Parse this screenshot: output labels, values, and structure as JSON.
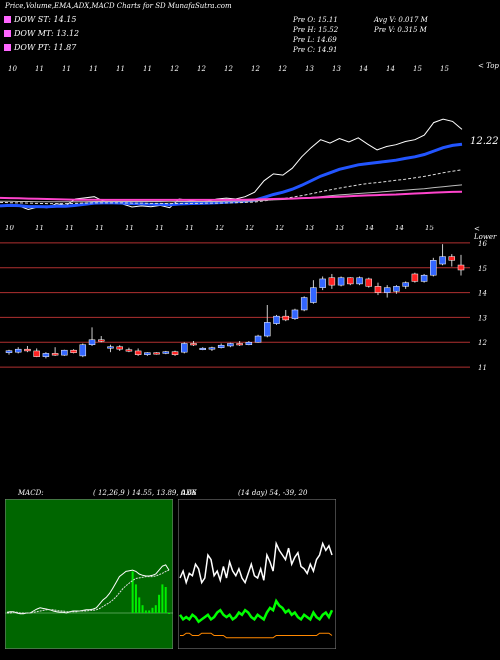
{
  "header": {
    "title": "Price,Volume,EMA,ADX,MACD Charts for SD MunafaSutra.com",
    "dow_st": "DOW ST: 14.15",
    "dow_mt": "DOW MT: 13.12",
    "dow_pt": "DOW PT: 11.87",
    "pre_o": "Pre   O: 15.11",
    "pre_h": "Pre   H: 15.52",
    "pre_l": "Pre   L: 14.69",
    "pre_c": "Pre   C: 14.91",
    "avg_v": "Avg V: 0.017 M",
    "pre_v": "Pre   V: 0.315 M"
  },
  "colors": {
    "dow_st": "#ff66ff",
    "dow_mt": "#ff66ff",
    "dow_pt": "#ff66ff",
    "ema_fast": "#2255ff",
    "ema_slow": "#ff44cc",
    "up": "#3366ff",
    "down": "#ff2222",
    "macd_bg": "#006600",
    "adx_bg": "#000080",
    "adx_green": "#00ff00",
    "adx_orange": "#ff8800",
    "hline": "#b03030"
  },
  "top_panel": {
    "corner_label": "< Top",
    "last_value_label": "12.22",
    "date_labels": [
      "10",
      "11",
      "11",
      "11",
      "11",
      "11",
      "12",
      "12",
      "12",
      "12",
      "12",
      "13",
      "13",
      "14",
      "14",
      "15",
      "15"
    ]
  },
  "price_panel": {
    "corner_label": "< Lower",
    "date_labels": [
      "10",
      "11",
      "11",
      "11",
      "11",
      "11",
      "11",
      "12",
      "12",
      "12",
      "13",
      "13",
      "14",
      "14",
      "15"
    ],
    "y_ticks": [
      "16",
      "15",
      "14",
      "13",
      "12",
      "11"
    ]
  },
  "macd_panel": {
    "label": "MACD:",
    "values": "( 12,26,9 ) 14.55, 13.89, 0.66"
  },
  "adx_panel": {
    "label": "ADX",
    "values": "(14 day) 54, -39, 20"
  },
  "chart_data": [
    {
      "type": "candlestick",
      "title": "Price",
      "y_ticks": [
        16,
        15,
        14,
        13,
        12,
        11
      ],
      "ylim": [
        10.6,
        16.4
      ],
      "candles": [
        {
          "o": 11.58,
          "h": 11.7,
          "l": 11.5,
          "c": 11.66
        },
        {
          "o": 11.6,
          "h": 11.8,
          "l": 11.55,
          "c": 11.72
        },
        {
          "o": 11.72,
          "h": 11.85,
          "l": 11.6,
          "c": 11.65
        },
        {
          "o": 11.65,
          "h": 11.75,
          "l": 11.4,
          "c": 11.42
        },
        {
          "o": 11.42,
          "h": 11.6,
          "l": 11.35,
          "c": 11.55
        },
        {
          "o": 11.55,
          "h": 11.8,
          "l": 11.45,
          "c": 11.48
        },
        {
          "o": 11.48,
          "h": 11.7,
          "l": 11.45,
          "c": 11.68
        },
        {
          "o": 11.68,
          "h": 11.72,
          "l": 11.55,
          "c": 11.58
        },
        {
          "o": 11.45,
          "h": 11.95,
          "l": 11.4,
          "c": 11.9
        },
        {
          "o": 11.9,
          "h": 12.6,
          "l": 11.85,
          "c": 12.1
        },
        {
          "o": 12.1,
          "h": 12.25,
          "l": 12.0,
          "c": 12.05
        },
        {
          "o": 11.8,
          "h": 11.9,
          "l": 11.6,
          "c": 11.82
        },
        {
          "o": 11.82,
          "h": 11.88,
          "l": 11.65,
          "c": 11.72
        },
        {
          "o": 11.7,
          "h": 11.78,
          "l": 11.6,
          "c": 11.65
        },
        {
          "o": 11.65,
          "h": 11.75,
          "l": 11.45,
          "c": 11.5
        },
        {
          "o": 11.5,
          "h": 11.6,
          "l": 11.45,
          "c": 11.58
        },
        {
          "o": 11.58,
          "h": 11.6,
          "l": 11.5,
          "c": 11.55
        },
        {
          "o": 11.55,
          "h": 11.65,
          "l": 11.52,
          "c": 11.62
        },
        {
          "o": 11.62,
          "h": 11.66,
          "l": 11.45,
          "c": 11.5
        },
        {
          "o": 11.6,
          "h": 12.0,
          "l": 11.55,
          "c": 11.95
        },
        {
          "o": 11.95,
          "h": 12.05,
          "l": 11.85,
          "c": 11.9
        },
        {
          "o": 11.75,
          "h": 11.8,
          "l": 11.68,
          "c": 11.76
        },
        {
          "o": 11.72,
          "h": 11.82,
          "l": 11.65,
          "c": 11.78
        },
        {
          "o": 11.78,
          "h": 11.95,
          "l": 11.75,
          "c": 11.88
        },
        {
          "o": 11.85,
          "h": 11.98,
          "l": 11.8,
          "c": 11.95
        },
        {
          "o": 11.95,
          "h": 12.05,
          "l": 11.85,
          "c": 11.9
        },
        {
          "o": 11.9,
          "h": 12.05,
          "l": 11.88,
          "c": 12.0
        },
        {
          "o": 12.0,
          "h": 12.3,
          "l": 11.98,
          "c": 12.25
        },
        {
          "o": 12.25,
          "h": 13.5,
          "l": 12.2,
          "c": 12.8
        },
        {
          "o": 12.75,
          "h": 13.1,
          "l": 12.7,
          "c": 13.05
        },
        {
          "o": 13.05,
          "h": 13.3,
          "l": 12.85,
          "c": 12.9
        },
        {
          "o": 12.95,
          "h": 13.35,
          "l": 12.9,
          "c": 13.3
        },
        {
          "o": 13.3,
          "h": 13.85,
          "l": 13.25,
          "c": 13.8
        },
        {
          "o": 13.6,
          "h": 14.5,
          "l": 13.55,
          "c": 14.2
        },
        {
          "o": 14.2,
          "h": 14.65,
          "l": 14.1,
          "c": 14.55
        },
        {
          "o": 14.6,
          "h": 14.75,
          "l": 14.15,
          "c": 14.3
        },
        {
          "o": 14.3,
          "h": 14.65,
          "l": 14.25,
          "c": 14.6
        },
        {
          "o": 14.6,
          "h": 14.62,
          "l": 14.3,
          "c": 14.35
        },
        {
          "o": 14.35,
          "h": 14.65,
          "l": 14.3,
          "c": 14.6
        },
        {
          "o": 14.55,
          "h": 14.6,
          "l": 14.2,
          "c": 14.25
        },
        {
          "o": 14.25,
          "h": 14.4,
          "l": 13.9,
          "c": 14.0
        },
        {
          "o": 14.0,
          "h": 14.3,
          "l": 13.8,
          "c": 14.2
        },
        {
          "o": 14.05,
          "h": 14.3,
          "l": 13.95,
          "c": 14.25
        },
        {
          "o": 14.25,
          "h": 14.45,
          "l": 14.15,
          "c": 14.4
        },
        {
          "o": 14.75,
          "h": 14.8,
          "l": 14.4,
          "c": 14.45
        },
        {
          "o": 14.45,
          "h": 14.75,
          "l": 14.4,
          "c": 14.7
        },
        {
          "o": 14.7,
          "h": 15.4,
          "l": 14.65,
          "c": 15.3
        },
        {
          "o": 15.15,
          "h": 15.95,
          "l": 15.1,
          "c": 15.45
        },
        {
          "o": 15.45,
          "h": 15.55,
          "l": 15.05,
          "c": 15.3
        },
        {
          "o": 15.11,
          "h": 15.52,
          "l": 14.69,
          "c": 14.91
        }
      ]
    },
    {
      "type": "line",
      "title": "EMA",
      "last_value": 12.22,
      "series": [
        {
          "values": [
            11.6,
            11.66,
            11.6,
            11.44,
            11.55,
            11.52,
            11.7,
            11.62,
            11.9,
            11.95,
            12.0,
            11.8,
            11.75,
            11.68,
            11.55,
            11.6,
            11.56,
            11.62,
            11.52,
            11.9,
            11.85,
            11.78,
            11.8,
            11.9,
            11.94,
            11.9,
            12.0,
            12.2,
            12.7,
            13.0,
            12.95,
            13.25,
            13.75,
            14.15,
            14.5,
            14.35,
            14.55,
            14.4,
            14.58,
            14.3,
            14.05,
            14.2,
            14.28,
            14.42,
            14.5,
            14.7,
            15.25,
            15.4,
            15.3,
            14.95
          ]
        },
        {
          "values": [
            11.6,
            11.62,
            11.61,
            11.57,
            11.57,
            11.56,
            11.58,
            11.58,
            11.62,
            11.67,
            11.72,
            11.73,
            11.73,
            11.72,
            11.7,
            11.69,
            11.67,
            11.67,
            11.65,
            11.68,
            11.7,
            11.71,
            11.72,
            11.74,
            11.76,
            11.78,
            11.8,
            11.85,
            11.97,
            12.1,
            12.2,
            12.33,
            12.5,
            12.7,
            12.9,
            13.05,
            13.2,
            13.3,
            13.4,
            13.45,
            13.5,
            13.55,
            13.6,
            13.68,
            13.75,
            13.85,
            14.0,
            14.15,
            14.25,
            14.3
          ]
        },
        {
          "values": [
            11.75,
            11.74,
            11.73,
            11.72,
            11.71,
            11.7,
            11.7,
            11.7,
            11.71,
            11.72,
            11.73,
            11.73,
            11.73,
            11.73,
            11.72,
            11.72,
            11.71,
            11.71,
            11.7,
            11.71,
            11.71,
            11.71,
            11.72,
            11.72,
            11.73,
            11.74,
            11.75,
            11.77,
            11.82,
            11.87,
            11.92,
            11.98,
            12.05,
            12.13,
            12.22,
            12.3,
            12.38,
            12.45,
            12.52,
            12.58,
            12.62,
            12.67,
            12.72,
            12.77,
            12.83,
            12.89,
            12.97,
            13.05,
            13.12,
            13.18
          ]
        },
        {
          "values": [
            11.8,
            11.8,
            11.79,
            11.79,
            11.78,
            11.78,
            11.78,
            11.78,
            11.78,
            11.78,
            11.79,
            11.79,
            11.79,
            11.79,
            11.79,
            11.79,
            11.79,
            11.79,
            11.78,
            11.79,
            11.79,
            11.79,
            11.79,
            11.79,
            11.8,
            11.8,
            11.81,
            11.82,
            11.84,
            11.86,
            11.88,
            11.91,
            11.94,
            11.97,
            12.0,
            12.04,
            12.08,
            12.11,
            12.14,
            12.17,
            12.2,
            12.23,
            12.26,
            12.29,
            12.32,
            12.35,
            12.4,
            12.44,
            12.48,
            12.52
          ]
        },
        {
          "values": [
            11.95,
            11.94,
            11.93,
            11.92,
            11.91,
            11.9,
            11.89,
            11.88,
            11.87,
            11.87,
            11.87,
            11.86,
            11.86,
            11.86,
            11.86,
            11.86,
            11.86,
            11.86,
            11.86,
            11.86,
            11.86,
            11.86,
            11.86,
            11.86,
            11.86,
            11.87,
            11.87,
            11.88,
            11.89,
            11.9,
            11.91,
            11.92,
            11.94,
            11.95,
            11.97,
            11.99,
            12.0,
            12.02,
            12.04,
            12.06,
            12.07,
            12.09,
            12.1,
            12.12,
            12.14,
            12.16,
            12.18,
            12.2,
            12.21,
            12.22
          ]
        }
      ]
    },
    {
      "type": "line",
      "title": "MACD",
      "series": [
        {
          "values": [
            0.01,
            0.02,
            0.02,
            0.0,
            -0.01,
            -0.01,
            0.0,
            0.0,
            0.03,
            0.06,
            0.08,
            0.07,
            0.06,
            0.05,
            0.03,
            0.02,
            0.01,
            0.01,
            0.0,
            0.02,
            0.03,
            0.03,
            0.03,
            0.04,
            0.05,
            0.05,
            0.06,
            0.08,
            0.14,
            0.2,
            0.24,
            0.3,
            0.38,
            0.47,
            0.56,
            0.6,
            0.64,
            0.65,
            0.66,
            0.64,
            0.6,
            0.58,
            0.57,
            0.57,
            0.58,
            0.6,
            0.66,
            0.72,
            0.74,
            0.66
          ]
        },
        {
          "values": [
            0.0,
            0.0,
            0.01,
            0.01,
            0.0,
            0.0,
            0.0,
            0.0,
            0.01,
            0.02,
            0.03,
            0.04,
            0.05,
            0.05,
            0.05,
            0.04,
            0.03,
            0.03,
            0.02,
            0.02,
            0.02,
            0.02,
            0.03,
            0.03,
            0.03,
            0.04,
            0.04,
            0.05,
            0.07,
            0.1,
            0.13,
            0.16,
            0.2,
            0.25,
            0.31,
            0.37,
            0.42,
            0.46,
            0.5,
            0.53,
            0.54,
            0.55,
            0.56,
            0.56,
            0.56,
            0.57,
            0.59,
            0.61,
            0.64,
            0.66
          ]
        }
      ]
    },
    {
      "type": "line",
      "title": "ADX",
      "series": [
        {
          "values": [
            30,
            33,
            28,
            32,
            31,
            36,
            34,
            28,
            30,
            40,
            38,
            31,
            33,
            29,
            35,
            30,
            37,
            33,
            31,
            34,
            30,
            28,
            32,
            36,
            31,
            30,
            34,
            29,
            40,
            37,
            33,
            45,
            42,
            40,
            38,
            43,
            36,
            39,
            41,
            35,
            34,
            32,
            36,
            33,
            38,
            40,
            45,
            42,
            44,
            40
          ]
        },
        {
          "values": [
            14,
            12,
            13,
            12,
            14,
            13,
            11,
            12,
            13,
            14,
            12,
            13,
            15,
            16,
            14,
            13,
            14,
            12,
            13,
            15,
            14,
            16,
            15,
            13,
            12,
            14,
            13,
            12,
            15,
            17,
            16,
            20,
            18,
            17,
            15,
            16,
            14,
            15,
            13,
            12,
            14,
            13,
            12,
            15,
            13,
            12,
            14,
            15,
            13,
            16
          ]
        },
        {
          "values": [
            5,
            5,
            6,
            6,
            5,
            5,
            5,
            6,
            6,
            6,
            6,
            5,
            5,
            5,
            5,
            4,
            4,
            4,
            4,
            4,
            4,
            4,
            4,
            4,
            4,
            4,
            4,
            4,
            4,
            4,
            4,
            5,
            5,
            5,
            5,
            5,
            5,
            5,
            5,
            5,
            5,
            5,
            5,
            5,
            5,
            6,
            6,
            6,
            6,
            5
          ]
        }
      ]
    }
  ]
}
